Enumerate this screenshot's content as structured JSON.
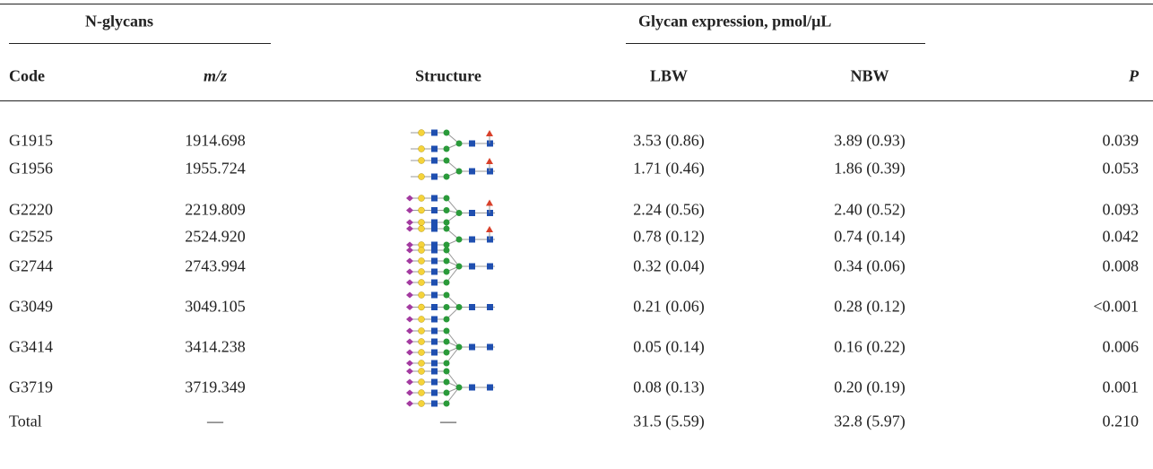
{
  "table": {
    "group_headers": [
      "N-glycans",
      "Glycan expression, pmol/μL"
    ],
    "columns": [
      "Code",
      "m/z",
      "Structure",
      "LBW",
      "NBW",
      "P"
    ],
    "rows": [
      {
        "code": "G1915",
        "mz": "1914.698",
        "lbw": "3.53 (0.86)",
        "nbw": "3.89 (0.93)",
        "p": "0.039"
      },
      {
        "code": "G1956",
        "mz": "1955.724",
        "lbw": "1.71 (0.46)",
        "nbw": "1.86 (0.39)",
        "p": "0.053"
      },
      {
        "code": "G2220",
        "mz": "2219.809",
        "lbw": "2.24 (0.56)",
        "nbw": "2.40 (0.52)",
        "p": "0.093"
      },
      {
        "code": "G2525",
        "mz": "2524.920",
        "lbw": "0.78 (0.12)",
        "nbw": "0.74 (0.14)",
        "p": "0.042"
      },
      {
        "code": "G2744",
        "mz": "2743.994",
        "lbw": "0.32 (0.04)",
        "nbw": "0.34 (0.06)",
        "p": "0.008"
      },
      {
        "code": "G3049",
        "mz": "3049.105",
        "lbw": "0.21 (0.06)",
        "nbw": "0.28 (0.12)",
        "p": "<0.001"
      },
      {
        "code": "G3414",
        "mz": "3414.238",
        "lbw": "0.05 (0.14)",
        "nbw": "0.16 (0.22)",
        "p": "0.006"
      },
      {
        "code": "G3719",
        "mz": "3719.349",
        "lbw": "0.08 (0.13)",
        "nbw": "0.20 (0.19)",
        "p": "0.001"
      },
      {
        "code": "Total",
        "mz": "—",
        "structure": "—",
        "lbw": "31.5 (5.59)",
        "nbw": "32.8 (5.97)",
        "p": "0.210"
      }
    ]
  }
}
